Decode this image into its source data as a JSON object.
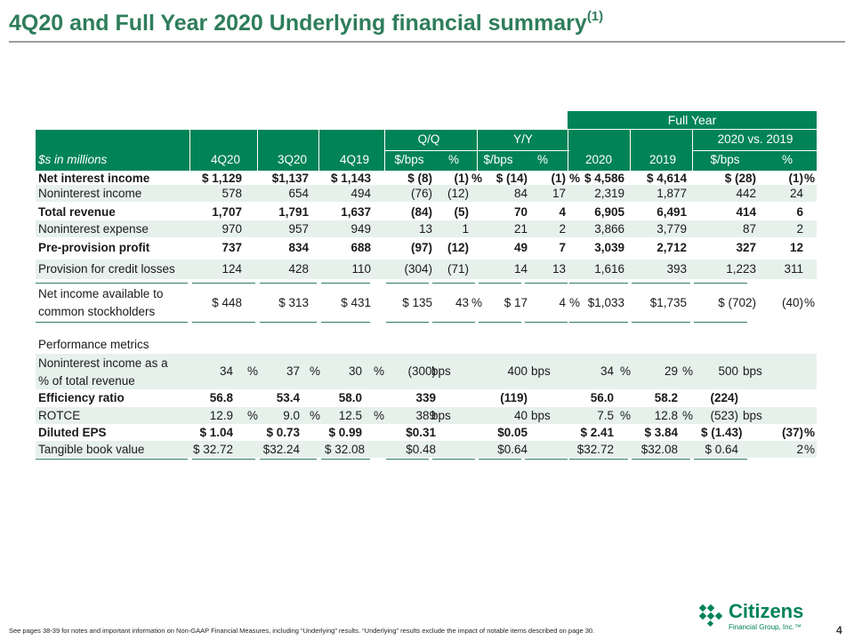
{
  "page": {
    "title": "4Q20 and Full Year 2020 Underlying financial summary",
    "title_sup": "(1)",
    "footnote": "See pages 38-39 for notes and important information on Non-GAAP Financial Measures, including “Underlying” results. “Underlying” results exclude the impact of notable items described on page 30.",
    "page_number": "4",
    "logo_name": "Citizens",
    "logo_sub": "Financial Group, Inc.™",
    "accent_color": "#008357",
    "shade_color": "#e6f1ec"
  },
  "table": {
    "header": {
      "full_year": "Full Year",
      "qq": "Q/Q",
      "yy": "Y/Y",
      "vs": "2020 vs. 2019",
      "units_label": "$s in millions",
      "col_4q20": "4Q20",
      "col_3q20": "3Q20",
      "col_4q19": "4Q19",
      "qq_bps": "$/bps",
      "qq_pct": "%",
      "yy_bps": "$/bps",
      "yy_pct": "%",
      "col_2020": "2020",
      "col_2019": "2019",
      "vs_bps": "$/bps",
      "vs_pct": "%"
    },
    "rows": [
      {
        "label": "Net interest income",
        "bold": true,
        "shade": false,
        "c4q20": "$  1,129",
        "c3q20": "$1,137",
        "c4q19": "$ 1,143",
        "qq": "$    (8)",
        "qqp": "(1)",
        "qqu": "%",
        "yy": "$  (14)",
        "yyp": "(1)",
        "yyu": "%",
        "f2020": "$ 4,586",
        "f2019": "$ 4,614",
        "vs": "$    (28)",
        "vsp": "(1)",
        "vsu": "%"
      },
      {
        "label": "Noninterest income",
        "bold": false,
        "shade": true,
        "c4q20": "578",
        "c3q20": "654",
        "c4q19": "494",
        "qq": "(76)",
        "qqp": "(12)",
        "qqu": "",
        "yy": "84",
        "yyp": "17",
        "yyu": "",
        "f2020": "2,319",
        "f2019": "1,877",
        "vs": "442",
        "vsp": "24",
        "vsu": ""
      },
      {
        "label": "Total revenue",
        "bold": true,
        "shade": false,
        "c4q20": "1,707",
        "c3q20": "1,791",
        "c4q19": "1,637",
        "qq": "(84)",
        "qqp": "(5)",
        "qqu": "",
        "yy": "70",
        "yyp": "4",
        "yyu": "",
        "f2020": "6,905",
        "f2019": "6,491",
        "vs": "414",
        "vsp": "6",
        "vsu": ""
      },
      {
        "label": "Noninterest expense",
        "bold": false,
        "shade": true,
        "c4q20": "970",
        "c3q20": "957",
        "c4q19": "949",
        "qq": "13",
        "qqp": "1",
        "qqu": "",
        "yy": "21",
        "yyp": "2",
        "yyu": "",
        "f2020": "3,866",
        "f2019": "3,779",
        "vs": "87",
        "vsp": "2",
        "vsu": ""
      },
      {
        "label": "Pre-provision profit",
        "bold": true,
        "shade": false,
        "c4q20": "737",
        "c3q20": "834",
        "c4q19": "688",
        "qq": "(97)",
        "qqp": "(12)",
        "qqu": "",
        "yy": "49",
        "yyp": "7",
        "yyu": "",
        "f2020": "3,039",
        "f2019": "2,712",
        "vs": "327",
        "vsp": "12",
        "vsu": ""
      },
      {
        "label": "Provision for credit losses",
        "bold": false,
        "shade": true,
        "c4q20": "124",
        "c3q20": "428",
        "c4q19": "110",
        "qq": "(304)",
        "qqp": "(71)",
        "qqu": "",
        "yy": "14",
        "yyp": "13",
        "yyu": "",
        "f2020": "1,616",
        "f2019": "393",
        "vs": "1,223",
        "vsp": "311",
        "vsu": ""
      }
    ],
    "net_income": {
      "label_line1": "Net income available to",
      "label_line2": "common stockholders",
      "c4q20": "$     448",
      "c3q20": "$     313",
      "c4q19": "$     431",
      "qq": "$ 135",
      "qqp": "43",
      "qqu": "%",
      "yy": "$    17",
      "yyp": "4",
      "yyu": "%",
      "f2020": "$1,033",
      "f2019": "$1,735",
      "vs": "$ (702)",
      "vsp": "(40)",
      "vsu": "%"
    },
    "perf_header": "Performance metrics",
    "nii_pct": {
      "label_line1": "Noninterest income as a",
      "label_line2": "% of total revenue",
      "c4q20": "34",
      "c4q20u": "%",
      "c3q20": "37",
      "c3q20u": "%",
      "c4q19": "30",
      "c4q19u": "%",
      "qq": "(300)",
      "qqu": "bps",
      "yy": "400",
      "yyu": "bps",
      "f2020": "34",
      "f2020u": "%",
      "f2019": "29",
      "f2019u": "%",
      "vs": "500",
      "vsu": "bps"
    },
    "metrics": [
      {
        "label": "Efficiency ratio",
        "bold": true,
        "shade": false,
        "c4q20": "56.8",
        "c4q20u": "",
        "c3q20": "53.4",
        "c3q20u": "",
        "c4q19": "58.0",
        "c4q19u": "",
        "qq": "339",
        "qqu": "",
        "yy": "(119)",
        "yyu": "",
        "f2020": "56.0",
        "f2020u": "",
        "f2019": "58.2",
        "f2019u": "",
        "vs": "(224)",
        "vsu": "",
        "vsp": "",
        "vspu": ""
      },
      {
        "label": "ROTCE",
        "bold": false,
        "shade": true,
        "c4q20": "12.9",
        "c4q20u": "%",
        "c3q20": "9.0",
        "c3q20u": "%",
        "c4q19": "12.5",
        "c4q19u": "%",
        "qq": "389",
        "qqu": "bps",
        "yy": "40",
        "yyu": "bps",
        "f2020": "7.5",
        "f2020u": "%",
        "f2019": "12.8",
        "f2019u": "%",
        "vs": "(523)",
        "vsu": "bps",
        "vsp": "",
        "vspu": ""
      },
      {
        "label": "Diluted EPS",
        "bold": true,
        "shade": false,
        "c4q20": "$    1.04",
        "c4q20u": "",
        "c3q20": "$  0.73",
        "c3q20u": "",
        "c4q19": "$   0.99",
        "c4q19u": "",
        "qq": "$0.31",
        "qqu": "",
        "yy": "$0.05",
        "yyu": "",
        "f2020": "$   2.41",
        "f2020u": "",
        "f2019": "$   3.84",
        "f2019u": "",
        "vs": "$ (1.43)",
        "vsu": "",
        "vsp": "(37)",
        "vspu": "%"
      },
      {
        "label": "Tangible book value",
        "bold": false,
        "shade": true,
        "c4q20": "$  32.72",
        "c4q20u": "",
        "c3q20": "$32.24",
        "c3q20u": "",
        "c4q19": "$ 32.08",
        "c4q19u": "",
        "qq": "$0.48",
        "qqu": "",
        "yy": "$0.64",
        "yyu": "",
        "f2020": "$32.72",
        "f2020u": "",
        "f2019": "$32.08",
        "f2019u": "",
        "vs": "$  0.64",
        "vsu": "",
        "vsp": "2",
        "vspu": "%"
      }
    ]
  }
}
